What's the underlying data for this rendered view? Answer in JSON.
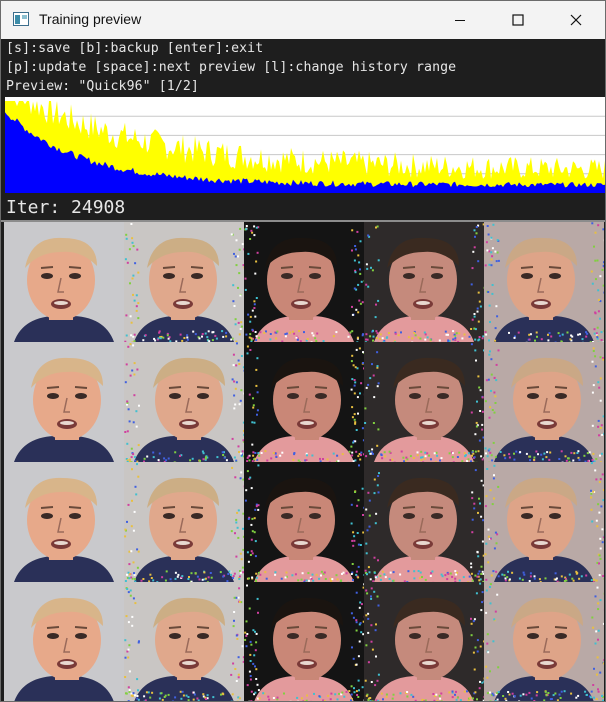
{
  "window": {
    "title": "Training preview",
    "controls": [
      "minimize-icon",
      "maximize-icon",
      "close-icon"
    ]
  },
  "console": {
    "line1": "[s]:save [b]:backup [enter]:exit",
    "line2": "[p]:update [space]:next preview [l]:change history range",
    "line3": "Preview: \"Quick96\" [1/2]"
  },
  "history_chart": {
    "series": [
      {
        "color": "#ffff00",
        "values_decay": [
          0.98,
          0.08
        ]
      },
      {
        "color": "#0000ff",
        "values_decay": [
          0.8,
          0.05
        ]
      }
    ],
    "gridlines": 4
  },
  "iteration": "Iter: 24908",
  "previews": {
    "rows": 4,
    "columns": [
      {
        "kind": "src-face",
        "skin": "#e7a98a",
        "bg": "#c9c9cc",
        "hair": "#d8b58a"
      },
      {
        "kind": "src-predicted",
        "skin": "#e0a88c",
        "bg": "#c9c6c4",
        "hair": "#ccae85"
      },
      {
        "kind": "dst-face",
        "skin": "#c98777",
        "bg": "#141414",
        "hair": "#1a1410"
      },
      {
        "kind": "dst-predicted",
        "skin": "#c58a7c",
        "bg": "#2e2a2a",
        "hair": "#3a2a20"
      },
      {
        "kind": "swap-result",
        "skin": "#dea488",
        "bg": "#b9a9a6",
        "hair": "#caa886"
      }
    ]
  }
}
